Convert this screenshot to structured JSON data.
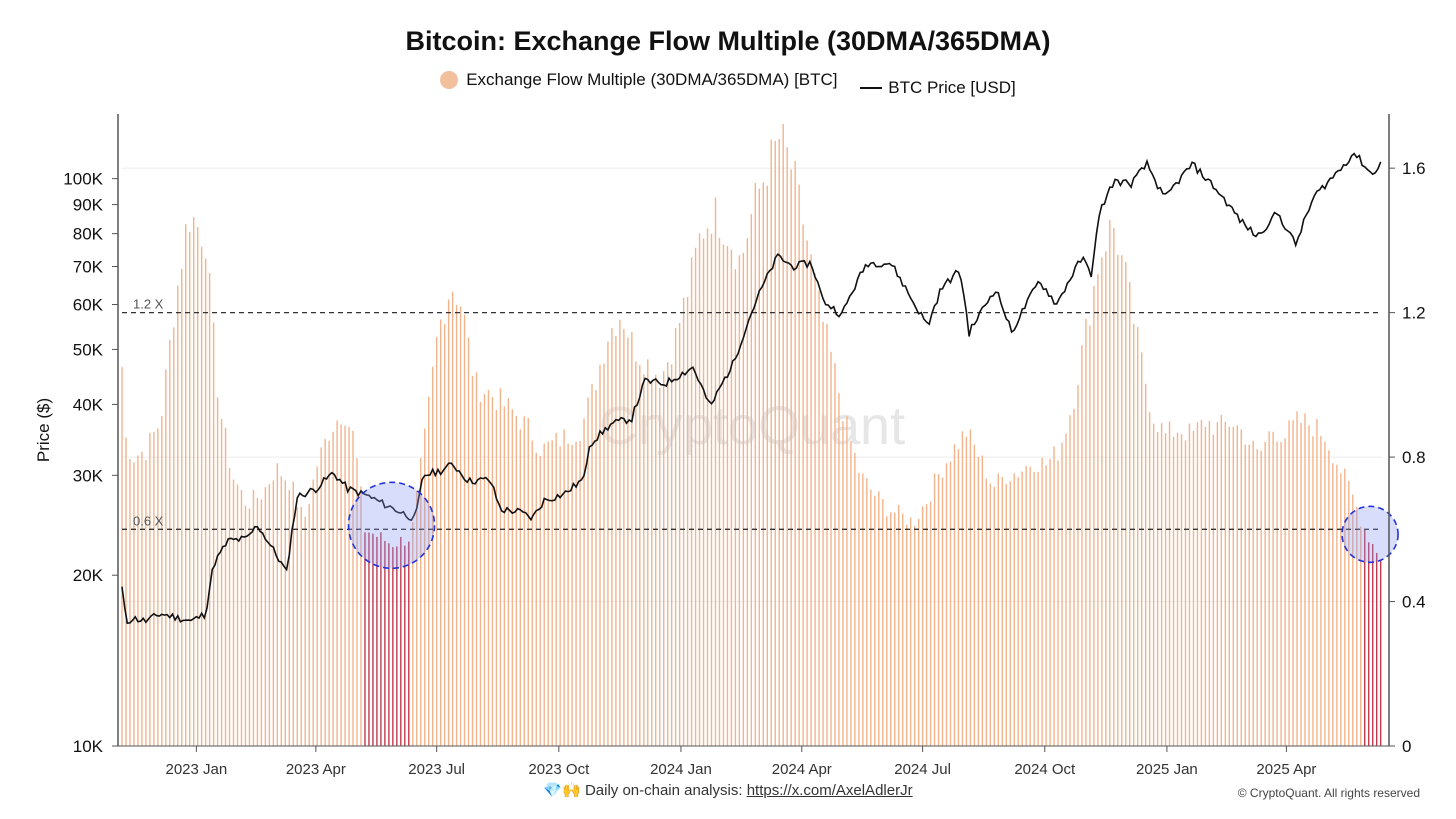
{
  "chart_data": {
    "type": "bar",
    "title": "Bitcoin: Exchange Flow Multiple (30DMA/365DMA)",
    "ylabel": "Price ($)",
    "left_axis": {
      "scale": "log",
      "range": [
        10000,
        130000
      ],
      "tick_values": [
        10000,
        20000,
        30000,
        40000,
        50000,
        60000,
        70000,
        80000,
        90000,
        100000
      ],
      "tick_labels": [
        "10K",
        "20K",
        "30K",
        "40K",
        "50K",
        "60K",
        "70K",
        "80K",
        "90K",
        "100K"
      ]
    },
    "right_axis": {
      "scale": "linear",
      "range": [
        0,
        1.75
      ],
      "tick_values": [
        0,
        0.4,
        0.8,
        1.2,
        1.6
      ],
      "tick_labels": [
        "0",
        "0.4",
        "0.8",
        "1.2",
        "1.6"
      ]
    },
    "x_axis": {
      "range": [
        "2022-11-06",
        "2025-06-12"
      ],
      "tick_dates": [
        "2023-01-01",
        "2023-04-01",
        "2023-07-01",
        "2023-10-01",
        "2024-01-01",
        "2024-04-01",
        "2024-07-01",
        "2024-10-01",
        "2025-01-01",
        "2025-04-01"
      ],
      "tick_labels": [
        "2023 Jan",
        "2023 Apr",
        "2023 Jul",
        "2023 Oct",
        "2024 Jan",
        "2024 Apr",
        "2024 Jul",
        "2024 Oct",
        "2025 Jan",
        "2025 Apr"
      ]
    },
    "grid": true,
    "legend_position": "top-center",
    "series": [
      {
        "name": "Exchange Flow Multiple (30DMA/365DMA) [BTC]",
        "axis": "right",
        "type": "bar",
        "color": "#f2b48c",
        "low_color": "#c23a4e",
        "low_threshold": 0.6,
        "points": [
          [
            "2022-11-06",
            1.05
          ],
          [
            "2022-11-09",
            0.85
          ],
          [
            "2022-11-14",
            0.8
          ],
          [
            "2022-11-24",
            0.82
          ],
          [
            "2022-12-05",
            0.9
          ],
          [
            "2022-12-15",
            1.2
          ],
          [
            "2022-12-25",
            1.45
          ],
          [
            "2022-12-28",
            1.47
          ],
          [
            "2023-01-08",
            1.4
          ],
          [
            "2023-01-18",
            0.95
          ],
          [
            "2023-01-28",
            0.75
          ],
          [
            "2023-02-08",
            0.67
          ],
          [
            "2023-02-20",
            0.7
          ],
          [
            "2023-03-02",
            0.77
          ],
          [
            "2023-03-13",
            0.73
          ],
          [
            "2023-03-23",
            0.62
          ],
          [
            "2023-04-02",
            0.78
          ],
          [
            "2023-04-12",
            0.88
          ],
          [
            "2023-04-22",
            0.93
          ],
          [
            "2023-04-30",
            0.85
          ],
          [
            "2023-05-08",
            0.6
          ],
          [
            "2023-05-18",
            0.58
          ],
          [
            "2023-05-28",
            0.56
          ],
          [
            "2023-06-06",
            0.57
          ],
          [
            "2023-06-12",
            0.58
          ],
          [
            "2023-06-22",
            0.85
          ],
          [
            "2023-07-02",
            1.15
          ],
          [
            "2023-07-12",
            1.28
          ],
          [
            "2023-07-20",
            1.22
          ],
          [
            "2023-07-30",
            1.0
          ],
          [
            "2023-08-09",
            0.98
          ],
          [
            "2023-08-19",
            0.95
          ],
          [
            "2023-08-29",
            0.92
          ],
          [
            "2023-09-08",
            0.88
          ],
          [
            "2023-09-18",
            0.82
          ],
          [
            "2023-09-28",
            0.84
          ],
          [
            "2023-10-08",
            0.86
          ],
          [
            "2023-10-18",
            0.88
          ],
          [
            "2023-10-28",
            1.0
          ],
          [
            "2023-11-07",
            1.14
          ],
          [
            "2023-11-17",
            1.2
          ],
          [
            "2023-11-27",
            1.1
          ],
          [
            "2023-12-07",
            1.06
          ],
          [
            "2023-12-17",
            1.02
          ],
          [
            "2023-12-27",
            1.12
          ],
          [
            "2024-01-06",
            1.26
          ],
          [
            "2024-01-16",
            1.42
          ],
          [
            "2024-01-26",
            1.48
          ],
          [
            "2024-02-05",
            1.42
          ],
          [
            "2024-02-15",
            1.34
          ],
          [
            "2024-02-25",
            1.5
          ],
          [
            "2024-03-06",
            1.6
          ],
          [
            "2024-03-16",
            1.69
          ],
          [
            "2024-03-26",
            1.58
          ],
          [
            "2024-04-05",
            1.4
          ],
          [
            "2024-04-15",
            1.2
          ],
          [
            "2024-04-25",
            1.05
          ],
          [
            "2024-05-05",
            0.88
          ],
          [
            "2024-05-15",
            0.75
          ],
          [
            "2024-05-25",
            0.7
          ],
          [
            "2024-06-04",
            0.66
          ],
          [
            "2024-06-14",
            0.64
          ],
          [
            "2024-06-24",
            0.62
          ],
          [
            "2024-07-04",
            0.68
          ],
          [
            "2024-07-14",
            0.76
          ],
          [
            "2024-07-24",
            0.82
          ],
          [
            "2024-08-03",
            0.87
          ],
          [
            "2024-08-13",
            0.8
          ],
          [
            "2024-08-23",
            0.72
          ],
          [
            "2024-09-02",
            0.75
          ],
          [
            "2024-09-12",
            0.76
          ],
          [
            "2024-09-22",
            0.79
          ],
          [
            "2024-10-02",
            0.78
          ],
          [
            "2024-10-12",
            0.82
          ],
          [
            "2024-10-22",
            0.95
          ],
          [
            "2024-11-01",
            1.15
          ],
          [
            "2024-11-11",
            1.35
          ],
          [
            "2024-11-21",
            1.45
          ],
          [
            "2024-12-01",
            1.3
          ],
          [
            "2024-12-11",
            1.1
          ],
          [
            "2024-12-21",
            0.92
          ],
          [
            "2024-12-31",
            0.86
          ],
          [
            "2025-01-10",
            0.88
          ],
          [
            "2025-01-20",
            0.86
          ],
          [
            "2025-01-30",
            0.9
          ],
          [
            "2025-02-09",
            0.88
          ],
          [
            "2025-02-19",
            0.9
          ],
          [
            "2025-03-01",
            0.86
          ],
          [
            "2025-03-11",
            0.8
          ],
          [
            "2025-03-21",
            0.88
          ],
          [
            "2025-03-31",
            0.86
          ],
          [
            "2025-04-10",
            0.9
          ],
          [
            "2025-04-20",
            0.89
          ],
          [
            "2025-04-30",
            0.86
          ],
          [
            "2025-05-10",
            0.78
          ],
          [
            "2025-05-20",
            0.7
          ],
          [
            "2025-05-30",
            0.6
          ],
          [
            "2025-06-05",
            0.56
          ],
          [
            "2025-06-12",
            0.52
          ]
        ]
      },
      {
        "name": "BTC Price [USD]",
        "axis": "left",
        "type": "line",
        "color": "#111111",
        "points": [
          [
            "2022-11-06",
            19000
          ],
          [
            "2022-11-09",
            16500
          ],
          [
            "2022-11-14",
            16800
          ],
          [
            "2022-11-24",
            16600
          ],
          [
            "2022-12-05",
            17100
          ],
          [
            "2022-12-15",
            16900
          ],
          [
            "2022-12-28",
            16600
          ],
          [
            "2023-01-08",
            17100
          ],
          [
            "2023-01-14",
            20900
          ],
          [
            "2023-01-25",
            23000
          ],
          [
            "2023-02-08",
            23200
          ],
          [
            "2023-02-16",
            24500
          ],
          [
            "2023-03-10",
            20200
          ],
          [
            "2023-03-18",
            27500
          ],
          [
            "2023-04-01",
            28400
          ],
          [
            "2023-04-14",
            30300
          ],
          [
            "2023-04-25",
            28400
          ],
          [
            "2023-05-10",
            27600
          ],
          [
            "2023-05-25",
            26500
          ],
          [
            "2023-06-15",
            25100
          ],
          [
            "2023-06-21",
            30000
          ],
          [
            "2023-07-05",
            30600
          ],
          [
            "2023-07-13",
            31400
          ],
          [
            "2023-07-25",
            29300
          ],
          [
            "2023-08-10",
            29500
          ],
          [
            "2023-08-18",
            26100
          ],
          [
            "2023-09-01",
            25900
          ],
          [
            "2023-09-11",
            25200
          ],
          [
            "2023-09-20",
            27100
          ],
          [
            "2023-10-05",
            27800
          ],
          [
            "2023-10-20",
            29600
          ],
          [
            "2023-10-24",
            34000
          ],
          [
            "2023-11-10",
            37000
          ],
          [
            "2023-11-25",
            37800
          ],
          [
            "2023-12-05",
            44000
          ],
          [
            "2023-12-20",
            43500
          ],
          [
            "2024-01-10",
            46500
          ],
          [
            "2024-01-23",
            39500
          ],
          [
            "2024-02-10",
            47500
          ],
          [
            "2024-02-28",
            62000
          ],
          [
            "2024-03-14",
            73000
          ],
          [
            "2024-03-25",
            70000
          ],
          [
            "2024-04-08",
            71000
          ],
          [
            "2024-04-17",
            61000
          ],
          [
            "2024-05-01",
            57500
          ],
          [
            "2024-05-20",
            71000
          ],
          [
            "2024-06-07",
            71000
          ],
          [
            "2024-06-24",
            60500
          ],
          [
            "2024-07-05",
            55000
          ],
          [
            "2024-07-15",
            64000
          ],
          [
            "2024-07-29",
            69000
          ],
          [
            "2024-08-05",
            53500
          ],
          [
            "2024-08-25",
            64000
          ],
          [
            "2024-09-06",
            53500
          ],
          [
            "2024-09-27",
            66000
          ],
          [
            "2024-10-10",
            60000
          ],
          [
            "2024-10-29",
            72500
          ],
          [
            "2024-11-05",
            68000
          ],
          [
            "2024-11-12",
            88000
          ],
          [
            "2024-11-22",
            99000
          ],
          [
            "2024-12-05",
            98000
          ],
          [
            "2024-12-17",
            106000
          ],
          [
            "2024-12-30",
            92000
          ],
          [
            "2025-01-20",
            106000
          ],
          [
            "2025-02-05",
            97000
          ],
          [
            "2025-02-26",
            84000
          ],
          [
            "2025-03-10",
            79000
          ],
          [
            "2025-03-25",
            87000
          ],
          [
            "2025-04-08",
            76500
          ],
          [
            "2025-04-22",
            93000
          ],
          [
            "2025-05-10",
            103000
          ],
          [
            "2025-05-22",
            111000
          ],
          [
            "2025-06-01",
            104000
          ],
          [
            "2025-06-05",
            101500
          ],
          [
            "2025-06-12",
            108000
          ]
        ]
      }
    ],
    "reference_lines": [
      {
        "value": 1.2,
        "label": "1.2 X"
      },
      {
        "value": 0.6,
        "label": "0.6 X"
      }
    ],
    "highlight_circles": [
      {
        "center_date": "2023-05-28"
      },
      {
        "center_date": "2025-06-03"
      }
    ]
  },
  "watermark": "CryptoQuant",
  "footer": {
    "emoji": "💎🙌",
    "text": "Daily on-chain analysis:",
    "link": "https://x.com/AxelAdlerJr"
  },
  "copyright": "© CryptoQuant. All rights reserved"
}
